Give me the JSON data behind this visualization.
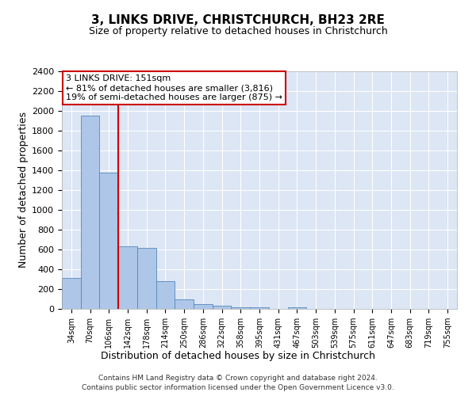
{
  "title": "3, LINKS DRIVE, CHRISTCHURCH, BH23 2RE",
  "subtitle": "Size of property relative to detached houses in Christchurch",
  "xlabel": "Distribution of detached houses by size in Christchurch",
  "ylabel": "Number of detached properties",
  "bar_labels": [
    "34sqm",
    "70sqm",
    "106sqm",
    "142sqm",
    "178sqm",
    "214sqm",
    "250sqm",
    "286sqm",
    "322sqm",
    "358sqm",
    "395sqm",
    "431sqm",
    "467sqm",
    "503sqm",
    "539sqm",
    "575sqm",
    "611sqm",
    "647sqm",
    "683sqm",
    "719sqm",
    "755sqm"
  ],
  "bar_values": [
    315,
    1950,
    1380,
    630,
    620,
    280,
    100,
    50,
    30,
    20,
    20,
    0,
    20,
    0,
    0,
    0,
    0,
    0,
    0,
    0,
    0
  ],
  "bar_color": "#aec6e8",
  "bar_edge_color": "#5588bb",
  "vline_color": "#cc0000",
  "annotation_title": "3 LINKS DRIVE: 151sqm",
  "annotation_line1": "← 81% of detached houses are smaller (3,816)",
  "annotation_line2": "19% of semi-detached houses are larger (875) →",
  "annotation_box_color": "#ffffff",
  "annotation_box_edge_color": "#cc0000",
  "ylim": [
    0,
    2400
  ],
  "yticks": [
    0,
    200,
    400,
    600,
    800,
    1000,
    1200,
    1400,
    1600,
    1800,
    2000,
    2200,
    2400
  ],
  "plot_bg_color": "#dce6f5",
  "grid_color": "#ffffff",
  "footer_line1": "Contains HM Land Registry data © Crown copyright and database right 2024.",
  "footer_line2": "Contains public sector information licensed under the Open Government Licence v3.0."
}
